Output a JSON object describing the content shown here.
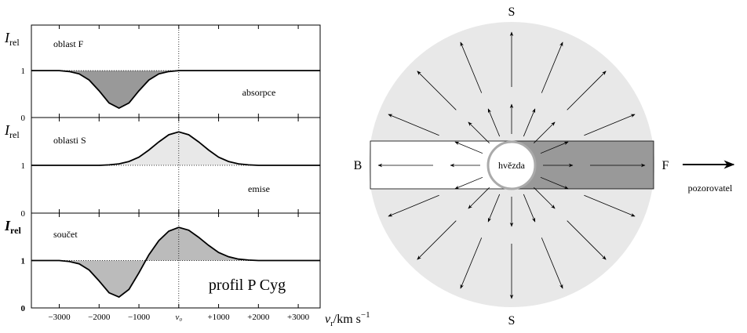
{
  "chart_data": [
    {
      "type": "line",
      "ylabel": "I",
      "ylabel_sub": "rel",
      "annotations": [
        "oblast F",
        "absorpce"
      ],
      "x": [
        -3700,
        -3500,
        -3250,
        -3000,
        -2750,
        -2500,
        -2250,
        -2000,
        -1750,
        -1500,
        -1250,
        -1000,
        -750,
        -500,
        -250,
        0,
        250,
        500,
        750,
        1000,
        1250,
        1500,
        1750,
        2000,
        2250,
        2500,
        2750,
        3000,
        3250,
        3500,
        3550
      ],
      "series": [
        {
          "color": "#000000",
          "fill": "#999999",
          "values": [
            1,
            1,
            1,
            1.0,
            0.98,
            0.93,
            0.8,
            0.57,
            0.31,
            0.2,
            0.31,
            0.57,
            0.8,
            0.93,
            0.98,
            1,
            1,
            1,
            1,
            1,
            1,
            1,
            1,
            1,
            1,
            1,
            1,
            1,
            1,
            1,
            1
          ]
        }
      ],
      "xlim": [
        -3700,
        3550
      ],
      "ylim": [
        0,
        1.97
      ],
      "yticks": [
        0,
        1
      ],
      "xref": 0,
      "yref": 1
    },
    {
      "type": "line",
      "ylabel": "I",
      "ylabel_sub": "rel",
      "annotations": [
        "oblasti S",
        "emise"
      ],
      "x": [
        -3700,
        -3500,
        -3250,
        -3000,
        -2750,
        -2500,
        -2250,
        -2000,
        -1750,
        -1500,
        -1250,
        -1000,
        -750,
        -500,
        -250,
        0,
        250,
        500,
        750,
        1000,
        1250,
        1500,
        1750,
        2000,
        2250,
        2500,
        2750,
        3000,
        3250,
        3500,
        3550
      ],
      "series": [
        {
          "color": "#000000",
          "fill": "#e8e8e8",
          "values": [
            1,
            1,
            1,
            1,
            1,
            1,
            1,
            1.0,
            1.01,
            1.03,
            1.08,
            1.17,
            1.32,
            1.49,
            1.64,
            1.7,
            1.64,
            1.49,
            1.32,
            1.17,
            1.08,
            1.03,
            1.01,
            1.0,
            1,
            1,
            1,
            1,
            1,
            1,
            1
          ]
        }
      ],
      "xlim": [
        -3700,
        3550
      ],
      "ylim": [
        0,
        2.0
      ],
      "yticks": [
        0,
        1
      ],
      "xref": 0,
      "yref": 1
    },
    {
      "type": "line",
      "ylabel": "I",
      "ylabel_sub": "rel",
      "annotations": [
        "součet",
        "profil P Cyg"
      ],
      "xlabel": "v",
      "xlabel_sub": "r",
      "xlabel_unit": "/km s",
      "xlabel_sup": "−1",
      "x": [
        -3700,
        -3500,
        -3250,
        -3000,
        -2750,
        -2500,
        -2250,
        -2000,
        -1750,
        -1500,
        -1250,
        -1000,
        -750,
        -500,
        -250,
        0,
        250,
        500,
        750,
        1000,
        1250,
        1500,
        1750,
        2000,
        2250,
        2500,
        2750,
        3000,
        3250,
        3500,
        3550
      ],
      "series": [
        {
          "color": "#000000",
          "fill": "#bbbbbb",
          "values": [
            1,
            1,
            1,
            1.0,
            0.98,
            0.93,
            0.8,
            0.57,
            0.32,
            0.23,
            0.39,
            0.74,
            1.12,
            1.42,
            1.62,
            1.7,
            1.64,
            1.49,
            1.32,
            1.17,
            1.08,
            1.03,
            1.01,
            1.0,
            1,
            1,
            1,
            1,
            1,
            1,
            1
          ]
        }
      ],
      "xlim": [
        -3700,
        3550
      ],
      "ylim": [
        0,
        2.0
      ],
      "yticks": [
        0,
        1
      ],
      "xref": 0,
      "yref": 1,
      "xticks": [
        {
          "value": -3000,
          "label": "−3000"
        },
        {
          "value": -2000,
          "label": "−2000"
        },
        {
          "value": -1000,
          "label": "−1000"
        },
        {
          "value": 0,
          "label": "v₀"
        },
        {
          "value": 1000,
          "label": "+1000"
        },
        {
          "value": 2000,
          "label": "+2000"
        },
        {
          "value": 3000,
          "label": "+3000"
        }
      ]
    }
  ],
  "diagram": {
    "top": "S",
    "bottom": "S",
    "left": "B",
    "right": "F",
    "star": "hvězda",
    "observer": "pozorovatel"
  }
}
